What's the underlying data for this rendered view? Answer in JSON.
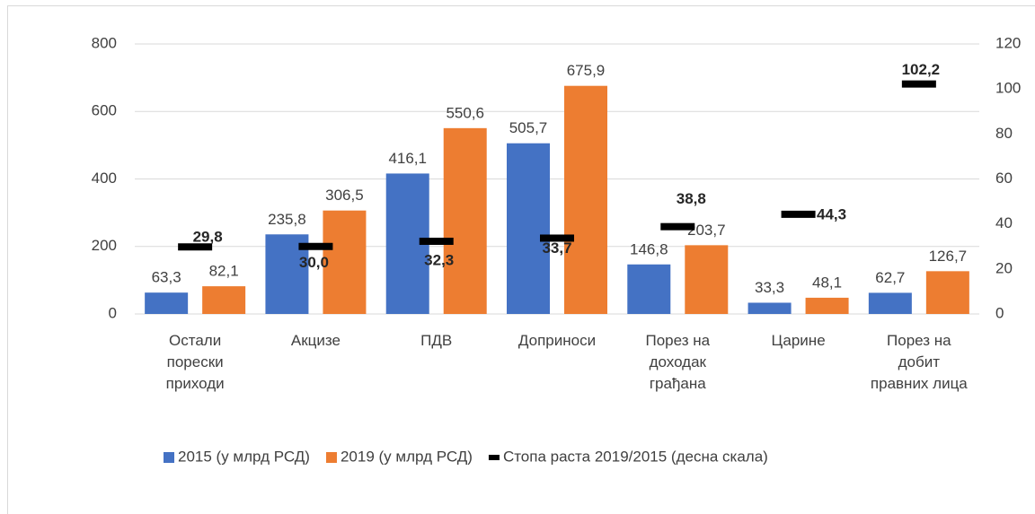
{
  "chart_data": {
    "type": "bar",
    "categories": [
      "Остали порески приходи",
      "Акцизе",
      "ПДВ",
      "Доприноси",
      "Порез на доходак грађана",
      "Царине",
      "Порез на добит правних лица"
    ],
    "series": [
      {
        "name": "2015 (у млрд РСД)",
        "color": "#4472c4",
        "type": "bar",
        "values": [
          63.3,
          235.8,
          416.1,
          505.7,
          146.8,
          33.3,
          62.7
        ],
        "value_labels": [
          "63,3",
          "235,8",
          "416,1",
          "505,7",
          "146,8",
          "33,3",
          "62,7"
        ]
      },
      {
        "name": "2019 (у млрд РСД)",
        "color": "#ed7d31",
        "type": "bar",
        "values": [
          82.1,
          306.5,
          550.6,
          675.9,
          203.7,
          48.1,
          126.7
        ],
        "value_labels": [
          "82,1",
          "306,5",
          "550,6",
          "675,9",
          "203,7",
          "48,1",
          "126,7"
        ]
      },
      {
        "name": "Стопа раста 2019/2015 (десна скала)",
        "color": "#000000",
        "type": "marker",
        "axis": "y2",
        "values": [
          29.8,
          30.0,
          32.3,
          33.7,
          38.8,
          44.3,
          102.2
        ],
        "value_labels": [
          "29,8",
          "30,0",
          "32,3",
          "33,7",
          "38,8",
          "44,3",
          "102,2"
        ]
      }
    ],
    "ylim": [
      0,
      800
    ],
    "yticks": [
      0,
      200,
      400,
      600,
      800
    ],
    "y2lim": [
      0,
      120
    ],
    "y2ticks": [
      0,
      20,
      40,
      60,
      80,
      100,
      120
    ],
    "grid": true,
    "legend": "bottom"
  }
}
